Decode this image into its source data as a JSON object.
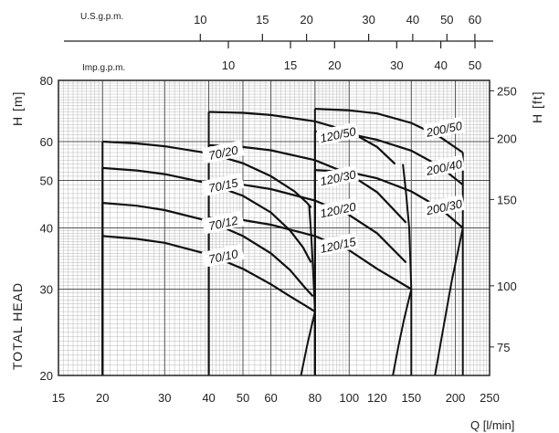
{
  "chart_data": {
    "type": "line",
    "x_scale": "log",
    "y_scale": "log",
    "xlim": [
      15,
      250
    ],
    "ylim_m": [
      20,
      80
    ],
    "ylim_ft": [
      65.6,
      262.4
    ],
    "x_ticks": [
      15,
      20,
      30,
      40,
      50,
      60,
      80,
      100,
      120,
      150,
      200,
      250
    ],
    "y_ticks_m": [
      20,
      30,
      40,
      50,
      60,
      80
    ],
    "y_ticks_ft": [
      75,
      100,
      150,
      200,
      250
    ],
    "us_gpm_ticks": [
      10,
      15,
      20,
      30,
      40,
      50,
      60
    ],
    "imp_gpm_ticks": [
      10,
      15,
      20,
      30,
      40,
      50
    ],
    "us_gpm_label": "U.S.g.p.m.",
    "imp_gpm_label": "Imp.g.p.m.",
    "xlabel": "Q [l/min]",
    "ylabel_left_prefix": "TOTAL HEAD",
    "ylabel_left_unit": "H [m]",
    "ylabel_right_unit": "H [ft]",
    "grid": true,
    "series": [
      {
        "name": "70/20",
        "x": [
          20,
          25,
          30,
          40,
          50,
          60,
          70,
          76,
          78
        ],
        "y": [
          60,
          59.5,
          58.7,
          56.8,
          54.2,
          51,
          47.5,
          45,
          44
        ]
      },
      {
        "name": "70/15",
        "x": [
          20,
          25,
          30,
          40,
          50,
          60,
          68,
          74,
          78
        ],
        "y": [
          53,
          52.4,
          51.5,
          49.3,
          46.5,
          43,
          39.5,
          36.5,
          34
        ]
      },
      {
        "name": "70/12",
        "x": [
          20,
          25,
          30,
          40,
          50,
          60,
          68,
          75,
          79
        ],
        "y": [
          45,
          44.4,
          43.5,
          41.3,
          38.5,
          35.5,
          32.8,
          30.2,
          29
        ]
      },
      {
        "name": "70/10",
        "x": [
          20,
          25,
          30,
          40,
          50,
          60,
          68,
          75,
          80
        ],
        "y": [
          38.5,
          38,
          37.3,
          35.3,
          33,
          30.7,
          29,
          27.8,
          27
        ]
      },
      {
        "name": "120/50",
        "x": [
          40,
          50,
          60,
          80,
          100,
          120,
          135
        ],
        "y": [
          69,
          68.7,
          68,
          66,
          63,
          58.5,
          54
        ]
      },
      {
        "name": "120/30",
        "x": [
          40,
          50,
          60,
          80,
          100,
          120,
          145
        ],
        "y": [
          59,
          58.5,
          57.6,
          55,
          51.5,
          47.3,
          41
        ]
      },
      {
        "name": "120/20",
        "x": [
          40,
          50,
          60,
          80,
          100,
          120,
          145
        ],
        "y": [
          49.5,
          49,
          48,
          45.5,
          42.5,
          39,
          34
        ]
      },
      {
        "name": "120/15",
        "x": [
          40,
          50,
          60,
          80,
          100,
          120,
          150
        ],
        "y": [
          42,
          41.5,
          40.6,
          38.5,
          36,
          33,
          30
        ]
      },
      {
        "name": "200/50",
        "x": [
          80,
          100,
          120,
          150,
          180,
          210
        ],
        "y": [
          70,
          69.5,
          68.5,
          65.5,
          61.5,
          57
        ]
      },
      {
        "name": "200/40",
        "x": [
          80,
          100,
          120,
          150,
          180,
          210
        ],
        "y": [
          63,
          62.2,
          60.5,
          57.5,
          53.5,
          49
        ]
      },
      {
        "name": "200/30",
        "x": [
          80,
          100,
          120,
          150,
          180,
          210
        ],
        "y": [
          52.5,
          52,
          50.5,
          47.5,
          44,
          40
        ]
      }
    ],
    "drop_lines": [
      {
        "name": "70-end",
        "x": [
          77,
          78,
          79,
          80,
          80
        ],
        "y": [
          44.5,
          39,
          33,
          27,
          20
        ]
      },
      {
        "name": "70-min",
        "x": [
          80,
          76,
          73
        ],
        "y": [
          27,
          23,
          20
        ]
      },
      {
        "name": "120-end",
        "x": [
          142,
          145,
          148,
          150,
          150
        ],
        "y": [
          54,
          47,
          40,
          30,
          20
        ]
      },
      {
        "name": "120-min",
        "x": [
          150,
          143,
          138,
          133
        ],
        "y": [
          30,
          26,
          23,
          20
        ]
      },
      {
        "name": "200-end",
        "x": [
          210,
          210,
          210,
          210
        ],
        "y": [
          57,
          49,
          40,
          20
        ]
      },
      {
        "name": "200-min",
        "x": [
          210,
          195,
          183,
          175
        ],
        "y": [
          40,
          31,
          24,
          20
        ]
      }
    ],
    "label_positions": {
      "70/20": [
        44,
        56.8
      ],
      "70/15": [
        44,
        48.7
      ],
      "70/12": [
        44,
        40.8
      ],
      "70/10": [
        44,
        34.9
      ],
      "120/50": [
        93,
        61.8
      ],
      "120/30": [
        93,
        50.5
      ],
      "120/20": [
        93,
        43.4
      ],
      "120/15": [
        93,
        36.8
      ],
      "200/50": [
        186,
        63.5
      ],
      "200/40": [
        186,
        53
      ],
      "200/30": [
        186,
        44
      ]
    }
  }
}
